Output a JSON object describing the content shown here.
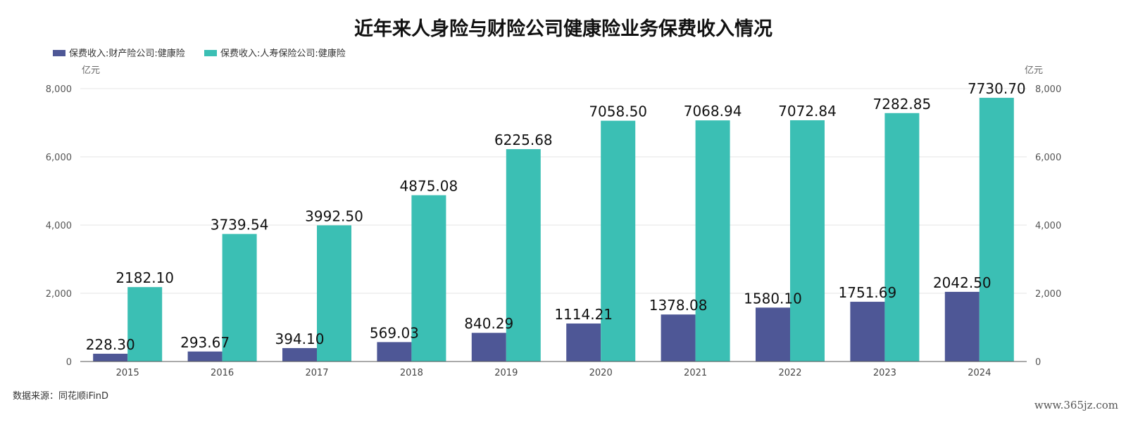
{
  "source_note": "数据来源：同花顺iFinD",
  "watermark": "www.365jz.com",
  "chart_data": {
    "type": "bar",
    "title": "近年来人身险与财险公司健康险业务保费收入情况",
    "categories": [
      "2015",
      "2016",
      "2017",
      "2018",
      "2019",
      "2020",
      "2021",
      "2022",
      "2023",
      "2024"
    ],
    "series": [
      {
        "name": "保费收入:财产险公司:健康险",
        "color": "#4e5796",
        "values": [
          228.3,
          293.67,
          394.1,
          569.03,
          840.29,
          1114.21,
          1378.08,
          1580.1,
          1751.69,
          2042.5
        ],
        "labels": [
          "228.30",
          "293.67",
          "394.10",
          "569.03",
          "840.29",
          "1114.21",
          "1378.08",
          "1580.10",
          "1751.69",
          "2042.50"
        ]
      },
      {
        "name": "保费收入:人寿保险公司:健康险",
        "color": "#3bbfb4",
        "values": [
          2182.1,
          3739.54,
          3992.5,
          4875.08,
          6225.68,
          7058.5,
          7068.94,
          7072.84,
          7282.85,
          7730.7
        ],
        "labels": [
          "2182.10",
          "3739.54",
          "3992.50",
          "4875.08",
          "6225.68",
          "7058.50",
          "7068.94",
          "7072.84",
          "7282.85",
          "7730.70"
        ]
      }
    ],
    "ylim": [
      0,
      8000
    ],
    "yticks": [
      0,
      2000,
      4000,
      6000,
      8000
    ],
    "ytick_labels": [
      "0",
      "2,000",
      "4,000",
      "6,000",
      "8,000"
    ],
    "y_unit_left": "亿元",
    "y_unit_right": "亿元",
    "grid": true,
    "legend_position": "top-left"
  }
}
